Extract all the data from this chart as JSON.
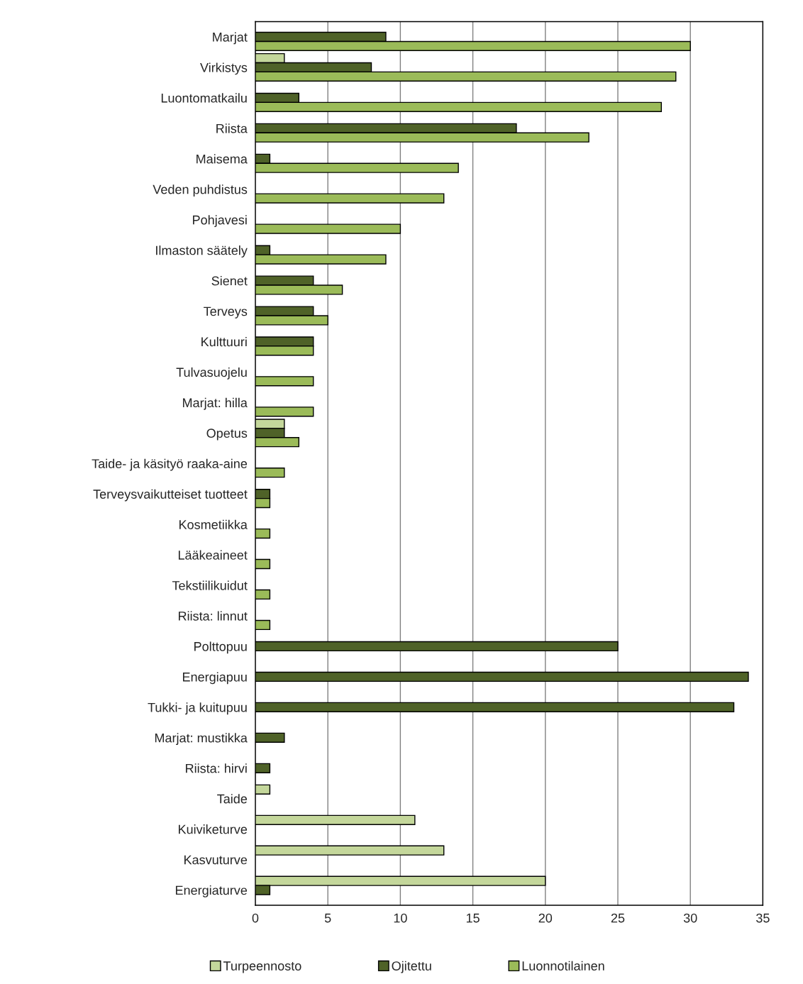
{
  "chart_data": {
    "type": "bar",
    "orientation": "horizontal",
    "categories": [
      "Marjat",
      "Virkistys",
      "Luontomatkailu",
      "Riista",
      "Maisema",
      "Veden puhdistus",
      "Pohjavesi",
      "Ilmaston säätely",
      "Sienet",
      "Terveys",
      "Kulttuuri",
      "Tulvasuojelu",
      "Marjat: hilla",
      "Opetus",
      "Taide- ja käsityö raaka-aine",
      "Terveysvaikutteiset tuotteet",
      "Kosmetiikka",
      "Lääkeaineet",
      "Tekstiilikuidut",
      "Riista: linnut",
      "Polttopuu",
      "Energiapuu",
      "Tukki- ja kuitupuu",
      "Marjat: mustikka",
      "Riista: hirvi",
      "Taide",
      "Kuiviketurve",
      "Kasvuturve",
      "Energiaturve"
    ],
    "series": [
      {
        "name": "Turpeennosto",
        "color": "#c4d79b",
        "values": [
          null,
          2,
          null,
          null,
          null,
          null,
          null,
          null,
          null,
          null,
          null,
          null,
          null,
          2,
          null,
          null,
          null,
          null,
          null,
          null,
          null,
          null,
          null,
          null,
          null,
          1,
          11,
          13,
          20
        ]
      },
      {
        "name": "Ojitettu",
        "color": "#4f6228",
        "values": [
          9,
          8,
          3,
          18,
          1,
          null,
          null,
          1,
          4,
          4,
          4,
          null,
          null,
          2,
          null,
          1,
          null,
          null,
          null,
          null,
          25,
          34,
          33,
          2,
          1,
          null,
          null,
          null,
          1
        ]
      },
      {
        "name": "Luonnotilainen",
        "color": "#9bbb59",
        "values": [
          30,
          29,
          28,
          23,
          14,
          13,
          10,
          9,
          6,
          5,
          4,
          4,
          4,
          3,
          2,
          1,
          1,
          1,
          1,
          1,
          null,
          null,
          null,
          null,
          null,
          null,
          null,
          null,
          null
        ]
      }
    ],
    "xlim": [
      0,
      35
    ],
    "xticks": [
      0,
      5,
      10,
      15,
      20,
      25,
      30,
      35
    ],
    "grid": "x",
    "legend": "bottom"
  }
}
